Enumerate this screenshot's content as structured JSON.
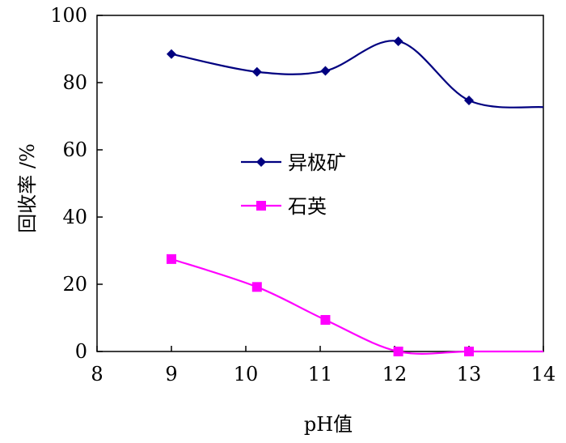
{
  "chart_data": {
    "type": "line",
    "title": "",
    "xlabel": "pH值",
    "ylabel": "回收率 /%",
    "xlim": [
      8,
      14
    ],
    "ylim": [
      0,
      100
    ],
    "xticks": [
      "8",
      "9",
      "10",
      "11",
      "12",
      "13",
      "14"
    ],
    "yticks": [
      "0",
      "20",
      "40",
      "60",
      "80",
      "100"
    ],
    "grid": false,
    "legend_position": "center-left",
    "series": [
      {
        "name": "异极矿",
        "color": "#000080",
        "marker": "diamond",
        "smooth": true,
        "points": [
          {
            "x": 9.0,
            "y": 88.5
          },
          {
            "x": 10.15,
            "y": 83.2
          },
          {
            "x": 11.07,
            "y": 83.5
          },
          {
            "x": 12.05,
            "y": 92.3
          },
          {
            "x": 13.0,
            "y": 74.7
          }
        ],
        "line_extends_to": {
          "x": 14,
          "y": 72.7
        }
      },
      {
        "name": "石英",
        "color": "#ff00ff",
        "marker": "square",
        "smooth": true,
        "points": [
          {
            "x": 9.0,
            "y": 27.5
          },
          {
            "x": 10.15,
            "y": 19.2
          },
          {
            "x": 11.07,
            "y": 9.4
          },
          {
            "x": 12.05,
            "y": 0.0
          },
          {
            "x": 13.0,
            "y": 0.0
          }
        ],
        "line_extends_to": {
          "x": 14,
          "y": 0.0
        }
      }
    ]
  }
}
